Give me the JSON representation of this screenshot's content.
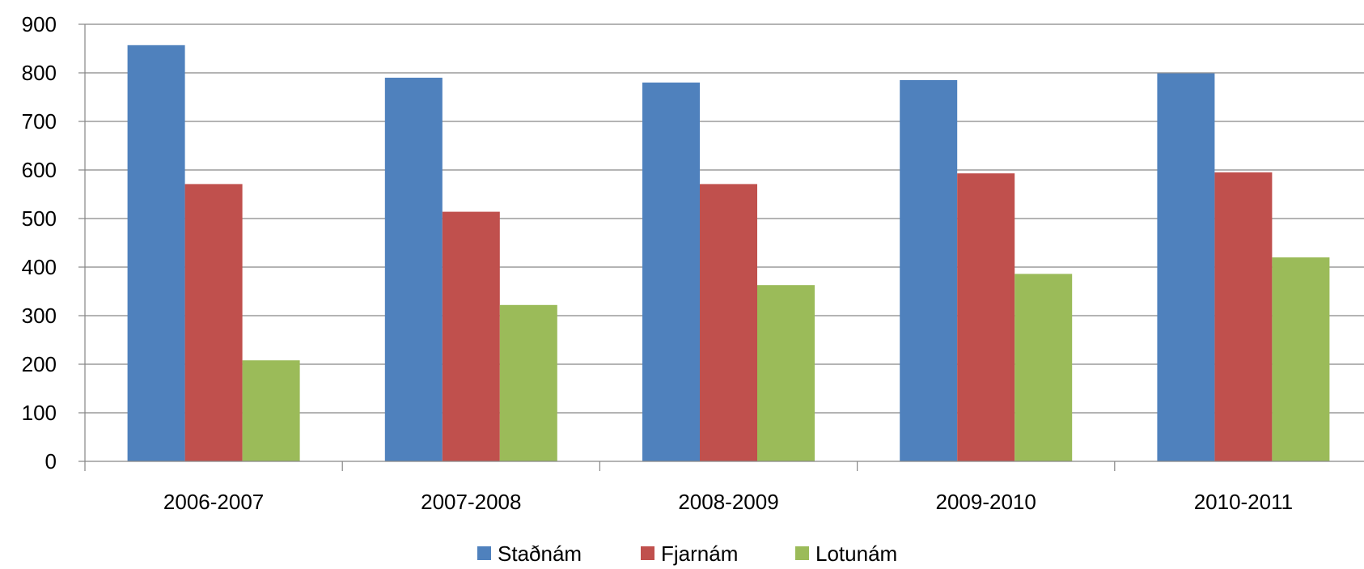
{
  "chart_data": {
    "type": "bar",
    "categories": [
      "2006-2007",
      "2007-2008",
      "2008-2009",
      "2009-2010",
      "2010-2011"
    ],
    "series": [
      {
        "name": "Staðnám",
        "color": "#4F81BD",
        "values": [
          857,
          790,
          780,
          785,
          799
        ]
      },
      {
        "name": "Fjarnám",
        "color": "#C0504D",
        "values": [
          571,
          514,
          571,
          593,
          595
        ]
      },
      {
        "name": "Lotunám",
        "color": "#9BBB59",
        "values": [
          208,
          322,
          363,
          386,
          420
        ]
      }
    ],
    "ylim": [
      0,
      900
    ],
    "yticks": [
      0,
      100,
      200,
      300,
      400,
      500,
      600,
      700,
      800,
      900
    ],
    "grid": true,
    "legend_position": "bottom",
    "title": "",
    "xlabel": "",
    "ylabel": ""
  }
}
